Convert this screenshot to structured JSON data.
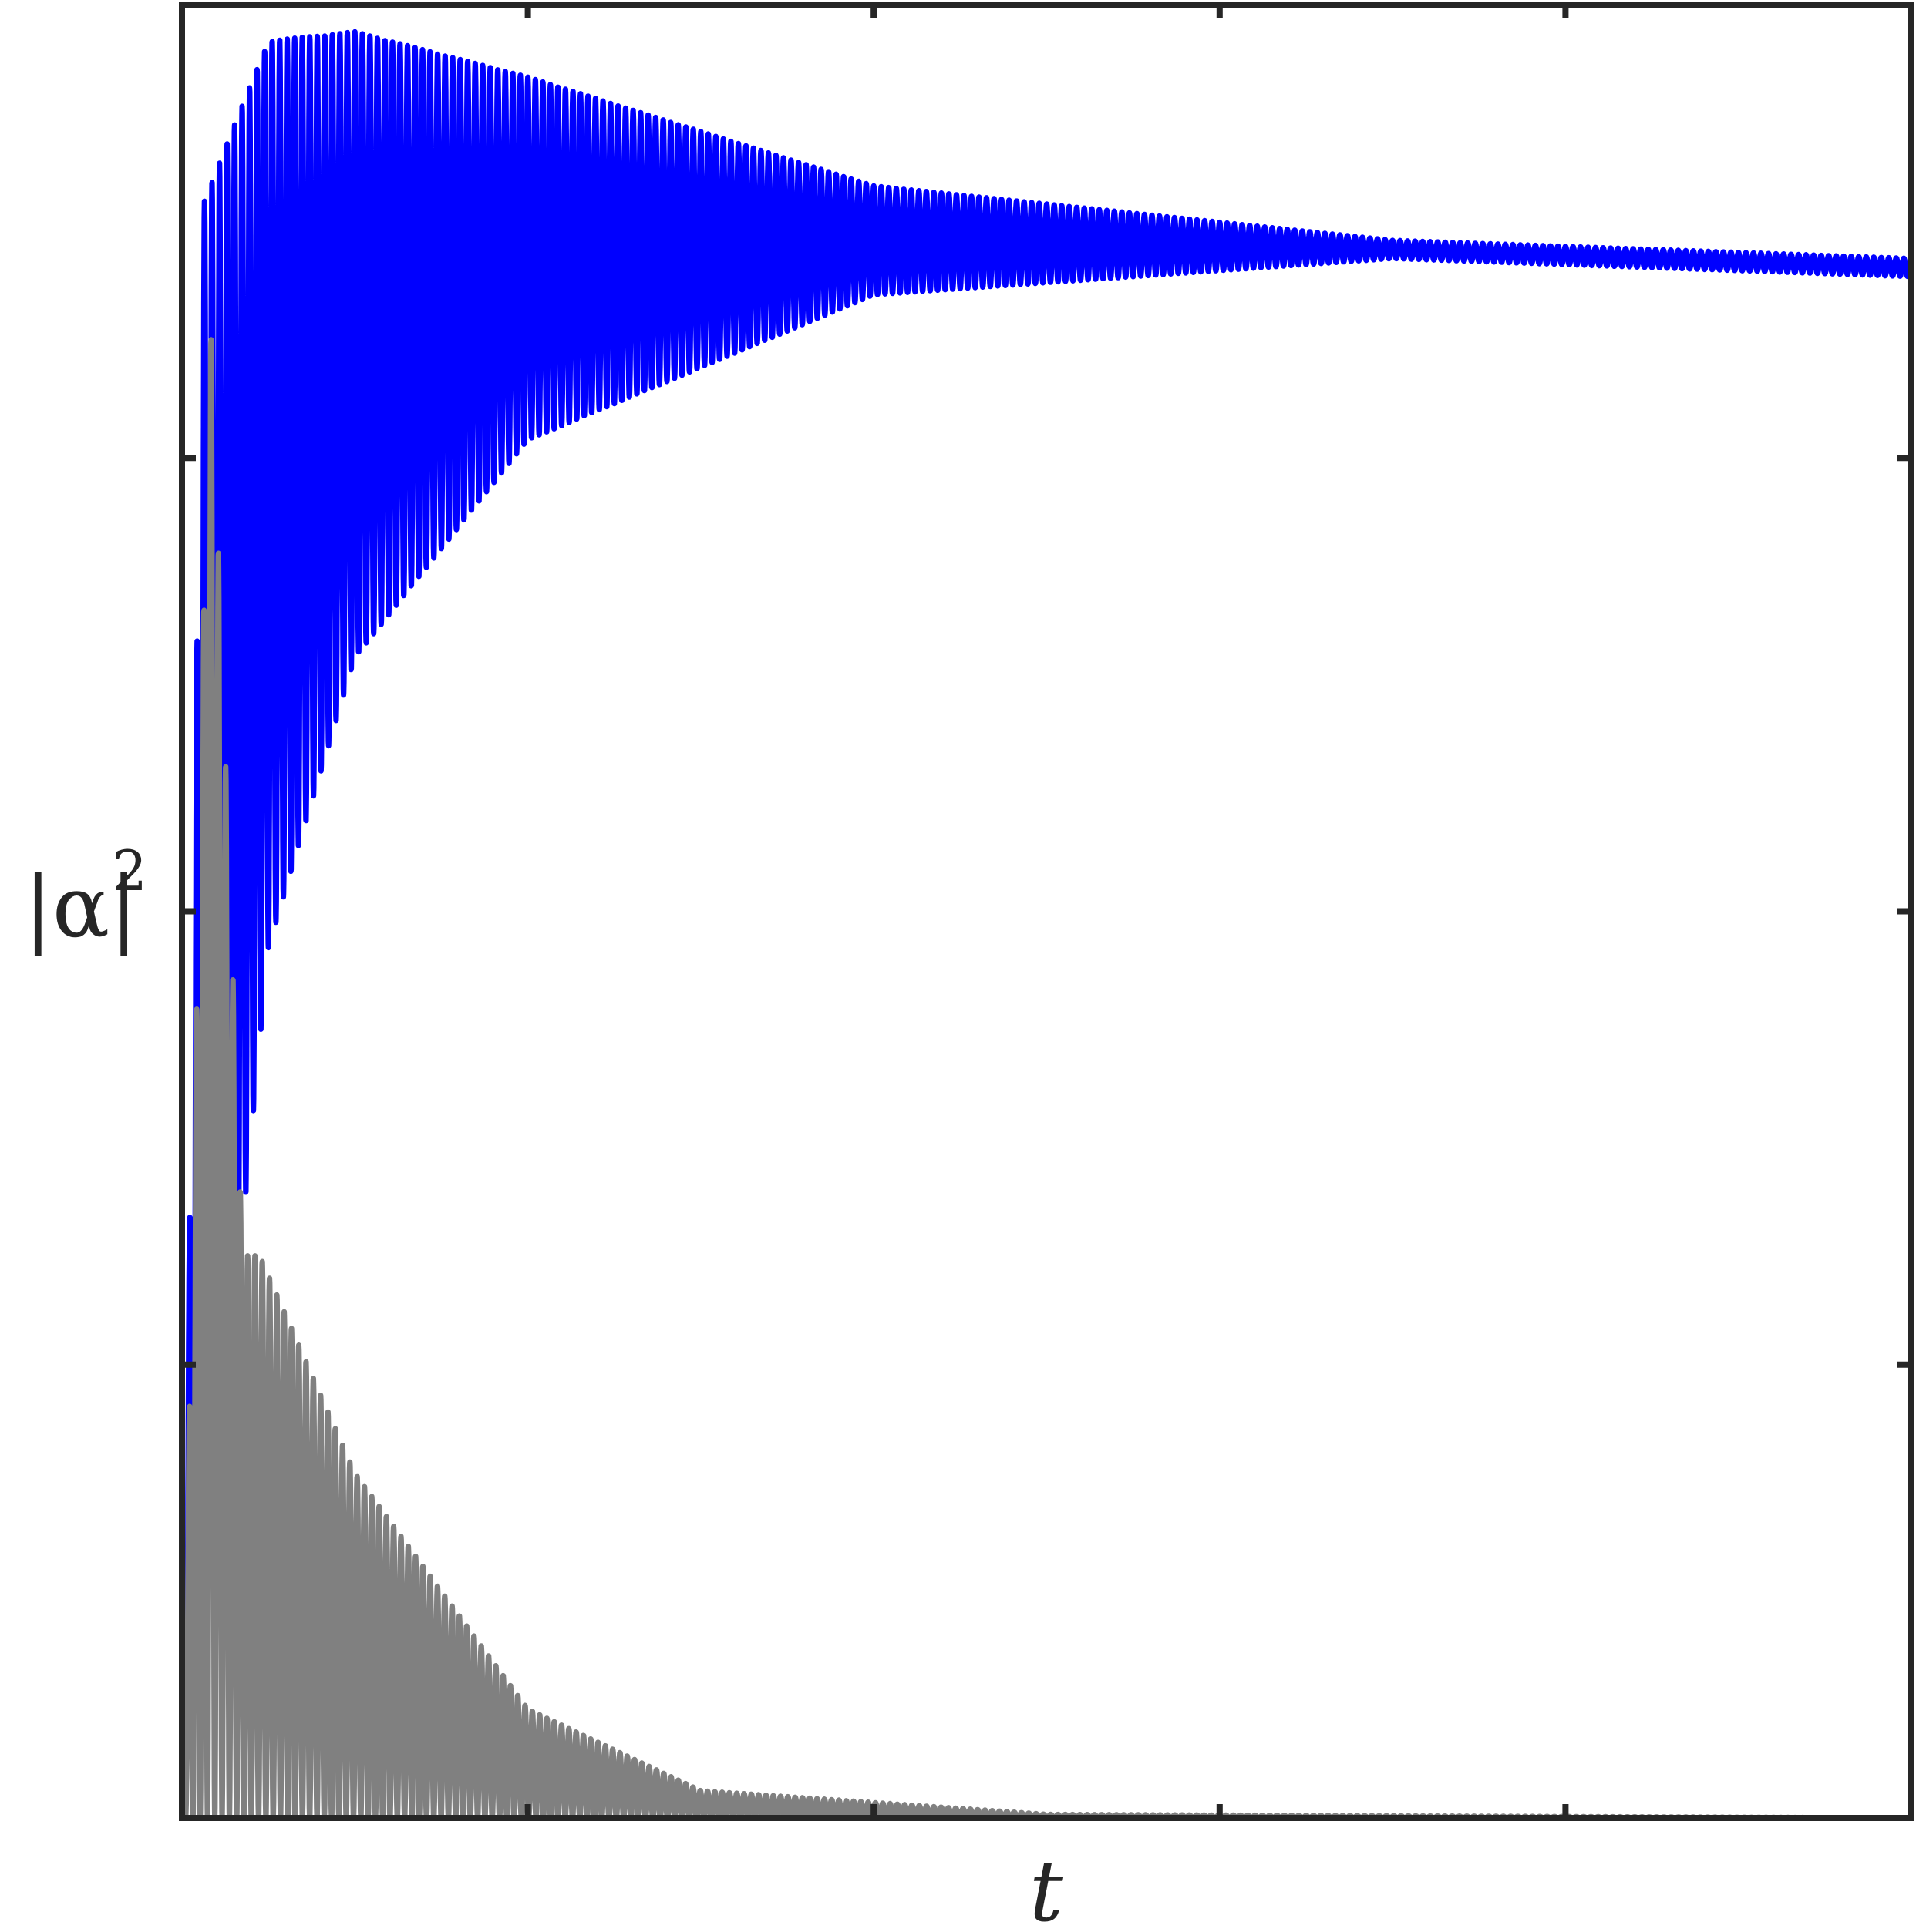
{
  "chart_data": {
    "type": "line",
    "title": "",
    "xlabel": "t",
    "ylabel_base": "|α|",
    "ylabel_exponent": "2",
    "xlim": [
      0,
      1
    ],
    "ylim": [
      0,
      1
    ],
    "x_ticks": [
      0.2,
      0.4,
      0.6,
      0.8
    ],
    "y_ticks": [
      0.25,
      0.5,
      0.75
    ],
    "tick_labels_shown": false,
    "grid": false,
    "legend": "none",
    "colors": {
      "series_1": "#0000ff",
      "series_2": "#808080",
      "axes": "#262626",
      "background": "#ffffff"
    },
    "series": [
      {
        "color": "#0000ff",
        "description_values": {
          "oscillation_count": 230,
          "upper_envelope": [
            [
              0.0,
              0.0
            ],
            [
              0.012,
              0.89
            ],
            [
              0.05,
              0.98
            ],
            [
              0.1,
              0.985
            ],
            [
              0.2,
              0.96
            ],
            [
              0.4,
              0.9
            ],
            [
              0.7,
              0.87
            ],
            [
              1.0,
              0.86
            ]
          ],
          "lower_envelope": [
            [
              0.0,
              0.0
            ],
            [
              0.025,
              0.22
            ],
            [
              0.05,
              0.48
            ],
            [
              0.1,
              0.64
            ],
            [
              0.2,
              0.76
            ],
            [
              0.4,
              0.84
            ],
            [
              0.7,
              0.86
            ],
            [
              1.0,
              0.85
            ]
          ]
        }
      },
      {
        "color": "#808080",
        "description_values": {
          "oscillation_count": 230,
          "upper_envelope": [
            [
              0.0,
              0.0
            ],
            [
              0.016,
              0.84
            ],
            [
              0.035,
              0.31
            ],
            [
              0.045,
              0.31
            ],
            [
              0.1,
              0.19
            ],
            [
              0.2,
              0.06
            ],
            [
              0.3,
              0.015
            ],
            [
              0.5,
              0.002
            ],
            [
              1.0,
              0.0
            ]
          ],
          "lower_envelope": [
            [
              0.0,
              0.0
            ],
            [
              1.0,
              0.0
            ]
          ]
        }
      }
    ]
  }
}
